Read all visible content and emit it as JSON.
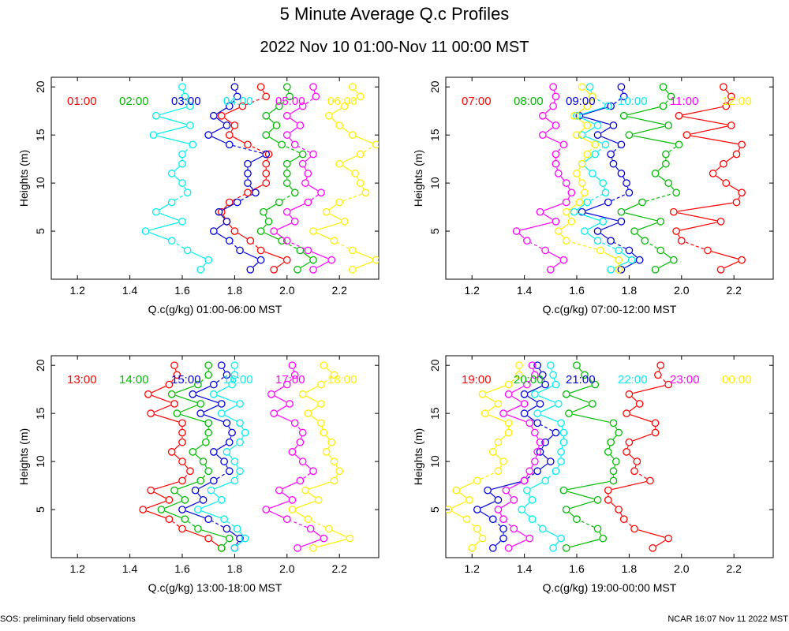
{
  "title": "5 Minute Average Q.c Profiles",
  "subtitle": "2022 Nov 10 01:00-Nov 11 00:00 MST",
  "footer_left": "SOS: preliminary field observations",
  "footer_right": "NCAR 16:07 Nov 11 2022 MST",
  "colors": [
    "#ff0000",
    "#00bb00",
    "#0000dd",
    "#00eeee",
    "#ff00ff",
    "#ffee00"
  ],
  "chart_data": [
    {
      "type": "line",
      "xlabel": "Q.c(g/kg) 01:00-06:00 MST",
      "ylabel": "Heights (m)",
      "xlim": [
        1.1,
        2.35
      ],
      "ylim": [
        0,
        21
      ],
      "xticks": [
        "1.2",
        "1.4",
        "1.6",
        "1.8",
        "2.0",
        "2.2"
      ],
      "yticks": [
        "5",
        "10",
        "15",
        "20"
      ],
      "heights": [
        1,
        2,
        3,
        4,
        5,
        6,
        7,
        8,
        9,
        10,
        11,
        12,
        13,
        14,
        15,
        16,
        17,
        18,
        19,
        20
      ],
      "series": [
        {
          "name": "01:00",
          "values": [
            1.95,
            2.0,
            1.9,
            1.86,
            1.8,
            1.77,
            1.75,
            1.78,
            1.85,
            1.92,
            1.92,
            1.92,
            1.93,
            1.85,
            1.78,
            1.8,
            1.75,
            1.83,
            1.92,
            1.9
          ]
        },
        {
          "name": "02:00",
          "values": [
            2.04,
            2.1,
            2.05,
            1.98,
            1.9,
            1.93,
            1.91,
            1.97,
            2.03,
            2.0,
            2.0,
            2.0,
            2.06,
            1.98,
            1.92,
            1.96,
            1.92,
            1.97,
            2.01,
            2.0
          ]
        },
        {
          "name": "03:00",
          "values": [
            1.86,
            1.9,
            1.82,
            1.78,
            1.72,
            1.77,
            1.74,
            1.81,
            1.88,
            1.85,
            1.85,
            1.85,
            1.92,
            1.78,
            1.7,
            1.77,
            1.72,
            1.78,
            1.81,
            1.8
          ]
        },
        {
          "name": "04:00",
          "values": [
            1.67,
            1.7,
            1.62,
            1.56,
            1.46,
            1.6,
            1.5,
            1.56,
            1.62,
            1.6,
            1.56,
            1.6,
            1.6,
            1.64,
            1.49,
            1.63,
            1.5,
            1.63,
            1.61,
            1.6
          ]
        },
        {
          "name": "05:00",
          "values": [
            2.1,
            2.17,
            2.08,
            2.0,
            1.95,
            2.03,
            2.0,
            2.08,
            2.13,
            2.07,
            2.08,
            2.06,
            2.1,
            2.03,
            2.0,
            2.05,
            2.0,
            2.06,
            2.11,
            2.1
          ]
        },
        {
          "name": "06:00",
          "values": [
            2.25,
            2.34,
            2.25,
            2.18,
            2.1,
            2.22,
            2.15,
            2.2,
            2.3,
            2.28,
            2.26,
            2.2,
            2.28,
            2.34,
            2.25,
            2.2,
            2.16,
            2.22,
            2.28,
            2.25
          ]
        }
      ]
    },
    {
      "type": "line",
      "xlabel": "Q.c(g/kg) 07:00-12:00 MST",
      "ylabel": "Heights (m)",
      "xlim": [
        1.1,
        2.35
      ],
      "ylim": [
        0,
        21
      ],
      "xticks": [
        "1.2",
        "1.4",
        "1.6",
        "1.8",
        "2.0",
        "2.2"
      ],
      "yticks": [
        "5",
        "10",
        "15",
        "20"
      ],
      "heights": [
        1,
        2,
        3,
        4,
        5,
        6,
        7,
        8,
        9,
        10,
        11,
        12,
        13,
        14,
        15,
        16,
        17,
        18,
        19,
        20
      ],
      "series": [
        {
          "name": "07:00",
          "values": [
            2.15,
            2.23,
            2.1,
            2.0,
            1.98,
            2.15,
            1.97,
            2.21,
            2.23,
            2.17,
            2.12,
            2.16,
            2.21,
            2.23,
            2.02,
            2.19,
            1.99,
            2.17,
            2.19,
            2.16
          ]
        },
        {
          "name": "08:00",
          "values": [
            1.9,
            1.97,
            1.92,
            1.86,
            1.82,
            1.92,
            1.77,
            1.85,
            1.98,
            1.95,
            1.9,
            1.94,
            1.94,
            1.99,
            1.8,
            1.95,
            1.78,
            1.93,
            1.96,
            1.93
          ]
        },
        {
          "name": "09:00",
          "values": [
            1.77,
            1.84,
            1.8,
            1.73,
            1.68,
            1.77,
            1.62,
            1.72,
            1.8,
            1.79,
            1.77,
            1.74,
            1.73,
            1.77,
            1.68,
            1.74,
            1.61,
            1.73,
            1.78,
            1.77
          ]
        },
        {
          "name": "10:00",
          "values": [
            1.73,
            1.81,
            1.76,
            1.68,
            1.63,
            1.7,
            1.59,
            1.64,
            1.71,
            1.7,
            1.66,
            1.62,
            1.67,
            1.71,
            1.62,
            1.68,
            1.6,
            1.72,
            1.66,
            1.65
          ]
        },
        {
          "name": "11:00",
          "values": [
            1.5,
            1.55,
            1.48,
            1.41,
            1.37,
            1.52,
            1.46,
            1.56,
            1.58,
            1.56,
            1.53,
            1.52,
            1.52,
            1.55,
            1.47,
            1.52,
            1.47,
            1.51,
            1.52,
            1.51
          ]
        },
        {
          "name": "12:00",
          "values": [
            1.76,
            1.76,
            1.69,
            1.56,
            1.53,
            1.58,
            1.56,
            1.61,
            1.63,
            1.62,
            1.6,
            1.62,
            1.64,
            1.67,
            1.6,
            1.64,
            1.59,
            1.64,
            1.66,
            1.62
          ]
        }
      ]
    },
    {
      "type": "line",
      "xlabel": "Q.c(g/kg) 13:00-18:00 MST",
      "ylabel": "Heights (m)",
      "xlim": [
        1.1,
        2.35
      ],
      "ylim": [
        0,
        21
      ],
      "xticks": [
        "1.2",
        "1.4",
        "1.6",
        "1.8",
        "2.0",
        "2.2"
      ],
      "yticks": [
        "5",
        "10",
        "15",
        "20"
      ],
      "heights": [
        1,
        2,
        3,
        4,
        5,
        6,
        7,
        8,
        9,
        10,
        11,
        12,
        13,
        14,
        15,
        16,
        17,
        18,
        19,
        20
      ],
      "series": [
        {
          "name": "13:00",
          "values": [
            1.75,
            1.7,
            1.6,
            1.55,
            1.45,
            1.55,
            1.48,
            1.6,
            1.63,
            1.6,
            1.56,
            1.6,
            1.6,
            1.6,
            1.48,
            1.57,
            1.47,
            1.55,
            1.58,
            1.57
          ]
        },
        {
          "name": "14:00",
          "values": [
            1.75,
            1.78,
            1.66,
            1.61,
            1.52,
            1.61,
            1.57,
            1.67,
            1.7,
            1.68,
            1.64,
            1.69,
            1.7,
            1.7,
            1.58,
            1.67,
            1.56,
            1.66,
            1.7,
            1.7
          ]
        },
        {
          "name": "15:00",
          "values": [
            1.8,
            1.82,
            1.77,
            1.7,
            1.6,
            1.68,
            1.65,
            1.72,
            1.78,
            1.76,
            1.72,
            1.78,
            1.79,
            1.77,
            1.67,
            1.75,
            1.64,
            1.72,
            1.77,
            1.75
          ]
        },
        {
          "name": "16:00",
          "values": [
            1.8,
            1.84,
            1.81,
            1.76,
            1.66,
            1.75,
            1.71,
            1.8,
            1.82,
            1.8,
            1.77,
            1.82,
            1.84,
            1.82,
            1.75,
            1.82,
            1.72,
            1.79,
            1.8,
            1.8
          ]
        },
        {
          "name": "17:00",
          "values": [
            2.04,
            2.14,
            2.09,
            2.0,
            1.92,
            2.02,
            1.97,
            2.05,
            2.1,
            2.06,
            2.02,
            2.05,
            2.06,
            2.03,
            1.95,
            2.01,
            1.94,
            2.0,
            2.03,
            2.02
          ]
        },
        {
          "name": "18:00",
          "values": [
            2.1,
            2.24,
            2.16,
            2.08,
            2.02,
            2.12,
            2.07,
            2.18,
            2.2,
            2.18,
            2.15,
            2.17,
            2.14,
            2.13,
            2.08,
            2.13,
            2.06,
            2.13,
            2.18,
            2.14
          ]
        }
      ]
    },
    {
      "type": "line",
      "xlabel": "Q.c(g/kg) 19:00-00:00 MST",
      "ylabel": "Heights (m)",
      "xlim": [
        1.1,
        2.35
      ],
      "ylim": [
        0,
        21
      ],
      "xticks": [
        "1.2",
        "1.4",
        "1.6",
        "1.8",
        "2.0",
        "2.2"
      ],
      "yticks": [
        "5",
        "10",
        "15",
        "20"
      ],
      "heights": [
        1,
        2,
        3,
        4,
        5,
        6,
        7,
        8,
        9,
        10,
        11,
        12,
        13,
        14,
        15,
        16,
        17,
        18,
        19,
        20
      ],
      "series": [
        {
          "name": "19:00",
          "values": [
            1.89,
            1.95,
            1.82,
            1.78,
            1.76,
            1.72,
            1.72,
            1.88,
            1.82,
            1.83,
            1.79,
            1.8,
            1.9,
            1.9,
            1.79,
            1.84,
            1.8,
            1.95,
            1.91,
            1.92
          ]
        },
        {
          "name": "20:00",
          "values": [
            1.56,
            1.7,
            1.68,
            1.6,
            1.56,
            1.68,
            1.55,
            1.74,
            1.74,
            1.75,
            1.72,
            1.73,
            1.76,
            1.74,
            1.57,
            1.66,
            1.56,
            1.67,
            1.63,
            1.6
          ]
        },
        {
          "name": "21:00",
          "values": [
            1.28,
            1.32,
            1.32,
            1.28,
            1.22,
            1.3,
            1.26,
            1.4,
            1.45,
            1.5,
            1.46,
            1.48,
            1.52,
            1.45,
            1.4,
            1.46,
            1.4,
            1.48,
            1.47,
            1.45
          ]
        },
        {
          "name": "22:00",
          "values": [
            1.51,
            1.54,
            1.47,
            1.43,
            1.39,
            1.43,
            1.41,
            1.48,
            1.52,
            1.54,
            1.54,
            1.55,
            1.55,
            1.54,
            1.45,
            1.53,
            1.44,
            1.52,
            1.51,
            1.5
          ]
        },
        {
          "name": "23:00",
          "values": [
            1.34,
            1.42,
            1.36,
            1.32,
            1.3,
            1.36,
            1.33,
            1.4,
            1.42,
            1.44,
            1.45,
            1.46,
            1.44,
            1.42,
            1.32,
            1.4,
            1.34,
            1.41,
            1.44,
            1.43
          ]
        },
        {
          "name": "00:00",
          "values": [
            1.2,
            1.24,
            1.22,
            1.18,
            1.11,
            1.19,
            1.14,
            1.22,
            1.3,
            1.32,
            1.28,
            1.3,
            1.34,
            1.34,
            1.25,
            1.3,
            1.24,
            1.34,
            1.38,
            1.38
          ]
        }
      ]
    }
  ]
}
